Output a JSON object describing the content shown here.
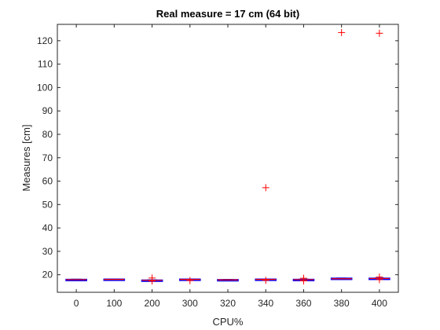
{
  "chart_data": {
    "type": "boxplot",
    "title": "Real measure = 17 cm (64 bit)",
    "xlabel": "CPU%",
    "ylabel": "Measures [cm]",
    "categories": [
      "0",
      "100",
      "200",
      "300",
      "320",
      "340",
      "360",
      "380",
      "400"
    ],
    "ylim": [
      12.5,
      127
    ],
    "yticks": [
      20,
      30,
      40,
      50,
      60,
      70,
      80,
      90,
      100,
      110,
      120
    ],
    "grid": false,
    "box_color": "#0000ff",
    "median_color": "#ff0000",
    "outlier_color": "#ff0000",
    "boxes": [
      {
        "category": "0",
        "q1": 17.7,
        "median": 17.9,
        "q3": 18.0,
        "whisker_low": 17.6,
        "whisker_high": 18.1,
        "outliers": []
      },
      {
        "category": "100",
        "q1": 17.8,
        "median": 18.0,
        "q3": 18.1,
        "whisker_low": 17.7,
        "whisker_high": 18.2,
        "outliers": []
      },
      {
        "category": "200",
        "q1": 17.5,
        "median": 17.6,
        "q3": 17.7,
        "whisker_low": 17.4,
        "whisker_high": 17.8,
        "outliers": [
          18.6,
          17.3
        ]
      },
      {
        "category": "300",
        "q1": 17.9,
        "median": 18.0,
        "q3": 18.1,
        "whisker_low": 17.8,
        "whisker_high": 18.2,
        "outliers": [
          17.5
        ]
      },
      {
        "category": "320",
        "q1": 17.7,
        "median": 17.8,
        "q3": 17.9,
        "whisker_low": 17.6,
        "whisker_high": 18.0,
        "outliers": []
      },
      {
        "category": "340",
        "q1": 17.9,
        "median": 18.0,
        "q3": 18.1,
        "whisker_low": 17.8,
        "whisker_high": 18.2,
        "outliers": [
          57.2,
          17.6
        ]
      },
      {
        "category": "360",
        "q1": 17.8,
        "median": 17.9,
        "q3": 18.0,
        "whisker_low": 17.7,
        "whisker_high": 18.1,
        "outliers": [
          18.5,
          17.4
        ]
      },
      {
        "category": "380",
        "q1": 18.1,
        "median": 18.3,
        "q3": 18.5,
        "whisker_low": 18.0,
        "whisker_high": 18.6,
        "outliers": [
          123.5
        ]
      },
      {
        "category": "400",
        "q1": 18.2,
        "median": 18.4,
        "q3": 18.5,
        "whisker_low": 18.1,
        "whisker_high": 18.6,
        "outliers": [
          123.2,
          19.0,
          17.9
        ]
      }
    ]
  }
}
